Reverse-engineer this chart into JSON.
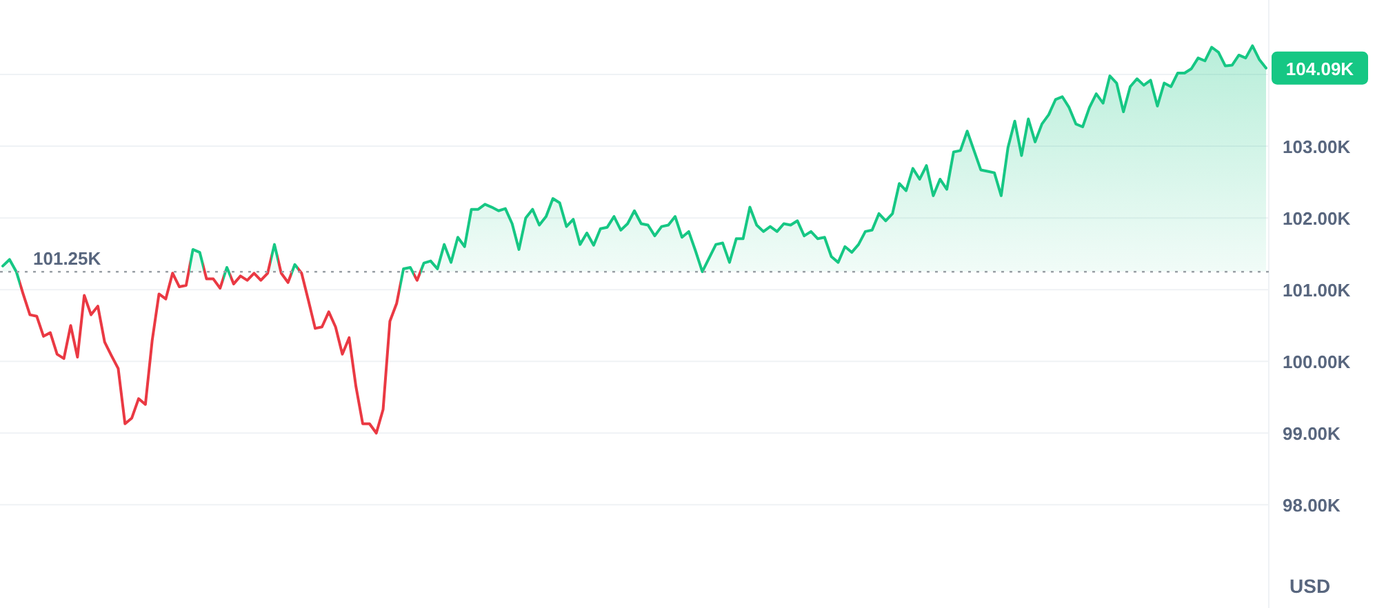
{
  "chart_data": {
    "type": "area",
    "ylabel": "USD",
    "categories": [
      null,
      null,
      null,
      null,
      null,
      null,
      null,
      null,
      null,
      null,
      null,
      null,
      null,
      null,
      null,
      null,
      null,
      null,
      null,
      null,
      null,
      null,
      null,
      null,
      null,
      null,
      null,
      null,
      null,
      null,
      null,
      null,
      null,
      null,
      null,
      null,
      null,
      null,
      null,
      null,
      null,
      null,
      null,
      null,
      null,
      null,
      null,
      null,
      null,
      null,
      null,
      null,
      null,
      null,
      null,
      null,
      null,
      null,
      null,
      null,
      null,
      null,
      null,
      null,
      null,
      null,
      null,
      null,
      null,
      null,
      null,
      null,
      null,
      null,
      null,
      null,
      null,
      null,
      null,
      null,
      null,
      null,
      null,
      null,
      null,
      null,
      null,
      null,
      null,
      null,
      null,
      null,
      null,
      null,
      null,
      null,
      null,
      null,
      null,
      null,
      null,
      null,
      null,
      null,
      null,
      null,
      null,
      null,
      null,
      null,
      null,
      null,
      null,
      null,
      null,
      null,
      null,
      null,
      null,
      null,
      null,
      null,
      null,
      null,
      null,
      null,
      null,
      null,
      null,
      null,
      null,
      null,
      null,
      null,
      null,
      null,
      null,
      null,
      null,
      null,
      null,
      null,
      null,
      null,
      null,
      null,
      null,
      null,
      null,
      null,
      null,
      null,
      null,
      null,
      null,
      null,
      null,
      null,
      null,
      null,
      null,
      null,
      null,
      null,
      null,
      null,
      null,
      null,
      null,
      null,
      null,
      null,
      null,
      null,
      null,
      null,
      null,
      null,
      null,
      null,
      null,
      null,
      null,
      null,
      null,
      null,
      null
    ],
    "series": [
      {
        "color": "#16c784",
        "colors": [
          "#16c784",
          "#16c784",
          "#16c784",
          "#ea3943",
          "#ea3943",
          "#ea3943",
          "#ea3943",
          "#ea3943",
          "#ea3943",
          "#ea3943",
          "#ea3943",
          "#ea3943",
          "#ea3943",
          "#ea3943",
          "#ea3943",
          "#ea3943",
          "#ea3943",
          "#ea3943",
          "#ea3943",
          "#ea3943",
          "#ea3943",
          "#ea3943",
          "#ea3943",
          "#ea3943",
          "#ea3943",
          "#ea3943",
          "#ea3943",
          "#ea3943",
          "#16c784",
          "#16c784",
          "#ea3943",
          "#ea3943",
          "#ea3943",
          "#16c784",
          "#ea3943",
          "#ea3943",
          "#ea3943",
          "#ea3943",
          "#ea3943",
          "#ea3943",
          "#16c784",
          "#ea3943",
          "#ea3943",
          "#16c784",
          "#ea3943",
          "#ea3943",
          "#ea3943",
          "#ea3943",
          "#ea3943",
          "#ea3943",
          "#ea3943",
          "#ea3943",
          "#ea3943",
          "#ea3943",
          "#ea3943",
          "#ea3943",
          "#ea3943",
          "#ea3943",
          "#ea3943",
          "#16c784",
          "#16c784",
          "#ea3943",
          "#16c784",
          "#16c784",
          "#16c784",
          "#16c784",
          "#16c784",
          "#16c784",
          "#16c784",
          "#16c784",
          "#16c784",
          "#16c784",
          "#16c784",
          "#16c784",
          "#16c784",
          "#16c784",
          "#16c784",
          "#16c784",
          "#16c784",
          "#16c784",
          "#16c784",
          "#16c784",
          "#16c784",
          "#16c784",
          "#16c784",
          "#16c784",
          "#16c784",
          "#16c784",
          "#16c784",
          "#16c784",
          "#16c784",
          "#16c784",
          "#16c784",
          "#16c784",
          "#16c784",
          "#16c784",
          "#16c784",
          "#16c784",
          "#16c784",
          "#16c784",
          "#16c784",
          "#16c784",
          "#16c784",
          "#16c784",
          "#16c784",
          "#16c784",
          "#16c784",
          "#16c784",
          "#16c784",
          "#16c784",
          "#16c784",
          "#16c784",
          "#16c784",
          "#16c784",
          "#16c784",
          "#16c784",
          "#16c784",
          "#16c784",
          "#16c784",
          "#16c784",
          "#16c784",
          "#16c784",
          "#16c784",
          "#16c784",
          "#16c784",
          "#16c784",
          "#16c784",
          "#16c784",
          "#16c784",
          "#16c784",
          "#16c784",
          "#16c784",
          "#16c784",
          "#16c784",
          "#16c784",
          "#16c784",
          "#16c784",
          "#16c784",
          "#16c784",
          "#16c784",
          "#16c784",
          "#16c784",
          "#16c784",
          "#16c784",
          "#16c784",
          "#16c784",
          "#16c784",
          "#16c784",
          "#16c784",
          "#16c784",
          "#16c784",
          "#16c784",
          "#16c784",
          "#16c784",
          "#16c784",
          "#16c784",
          "#16c784",
          "#16c784",
          "#16c784",
          "#16c784",
          "#16c784",
          "#16c784",
          "#16c784",
          "#16c784",
          "#16c784",
          "#16c784",
          "#16c784",
          "#16c784",
          "#16c784",
          "#16c784",
          "#16c784",
          "#16c784",
          "#16c784",
          "#16c784",
          "#16c784",
          "#16c784",
          "#16c784",
          "#16c784",
          "#16c784",
          "#16c784",
          "#16c784",
          "#16c784",
          "#16c784",
          "#16c784",
          "#16c784",
          "#16c784",
          "#16c784"
        ],
        "values": [
          101.33,
          101.42,
          101.25,
          100.94,
          100.65,
          100.63,
          100.35,
          100.4,
          100.1,
          100.04,
          100.5,
          100.06,
          100.92,
          100.65,
          100.77,
          100.27,
          100.08,
          99.9,
          99.13,
          99.21,
          99.48,
          99.4,
          100.29,
          100.94,
          100.87,
          101.23,
          101.04,
          101.06,
          101.56,
          101.52,
          101.15,
          101.15,
          101.02,
          101.31,
          101.08,
          101.19,
          101.13,
          101.23,
          101.13,
          101.23,
          101.63,
          101.23,
          101.1,
          101.35,
          101.23,
          100.85,
          100.46,
          100.48,
          100.69,
          100.48,
          100.1,
          100.33,
          99.65,
          99.13,
          99.13,
          99.0,
          99.33,
          100.56,
          100.81,
          101.29,
          101.31,
          101.13,
          101.37,
          101.4,
          101.29,
          101.63,
          101.38,
          101.73,
          101.6,
          102.12,
          102.12,
          102.19,
          102.15,
          102.1,
          102.13,
          101.92,
          101.56,
          102.0,
          102.12,
          101.9,
          102.02,
          102.27,
          102.21,
          101.88,
          101.98,
          101.63,
          101.79,
          101.62,
          101.85,
          101.87,
          102.02,
          101.83,
          101.92,
          102.1,
          101.92,
          101.9,
          101.75,
          101.88,
          101.9,
          102.02,
          101.73,
          101.81,
          101.54,
          101.25,
          101.44,
          101.63,
          101.65,
          101.38,
          101.71,
          101.71,
          102.15,
          101.9,
          101.81,
          101.88,
          101.81,
          101.92,
          101.9,
          101.96,
          101.75,
          101.81,
          101.71,
          101.73,
          101.46,
          101.38,
          101.6,
          101.52,
          101.63,
          101.81,
          101.83,
          102.06,
          101.96,
          102.06,
          102.48,
          102.38,
          102.69,
          102.54,
          102.73,
          102.31,
          102.54,
          102.4,
          102.92,
          102.94,
          103.21,
          102.94,
          102.67,
          102.65,
          102.63,
          102.31,
          102.98,
          103.35,
          102.87,
          103.38,
          103.06,
          103.31,
          103.44,
          103.65,
          103.69,
          103.54,
          103.31,
          103.27,
          103.54,
          103.73,
          103.6,
          103.98,
          103.88,
          103.48,
          103.83,
          103.94,
          103.85,
          103.92,
          103.56,
          103.88,
          103.83,
          104.02,
          104.02,
          104.08,
          104.23,
          104.19,
          104.38,
          104.31,
          104.12,
          104.13,
          104.27,
          104.23,
          104.4,
          104.21,
          104.09
        ]
      }
    ],
    "ylim": [
      96.6,
      105.0
    ],
    "yticks": [
      {
        "value": 98,
        "label": "98.00K"
      },
      {
        "value": 99,
        "label": "99.00K"
      },
      {
        "value": 100,
        "label": "100.00K"
      },
      {
        "value": 101,
        "label": "101.00K"
      },
      {
        "value": 102,
        "label": "102.00K"
      },
      {
        "value": 103,
        "label": "103.00K"
      },
      {
        "value": 104,
        "label": null
      }
    ],
    "grid": "y",
    "ref_lines": [
      {
        "axis": "y",
        "value": 101.25,
        "label": "101.25K",
        "line_style": "dotted",
        "color": "#9aa0a6"
      }
    ],
    "annotations": [
      "104.09K"
    ]
  }
}
